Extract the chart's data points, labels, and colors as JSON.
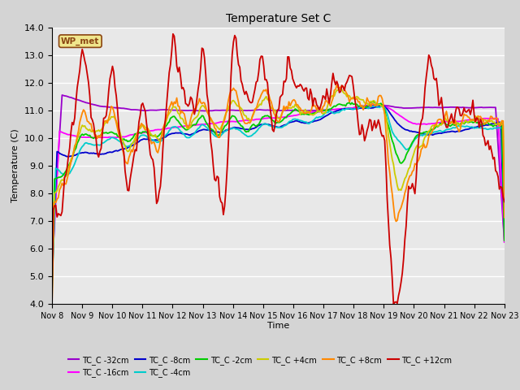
{
  "title": "Temperature Set C",
  "xlabel": "Time",
  "ylabel": "Temperature (C)",
  "ylim": [
    4.0,
    14.0
  ],
  "yticks": [
    4.0,
    5.0,
    6.0,
    7.0,
    8.0,
    9.0,
    10.0,
    11.0,
    12.0,
    13.0,
    14.0
  ],
  "xtick_labels": [
    "Nov 8",
    "Nov 9",
    "Nov 10",
    "Nov 11",
    "Nov 12",
    "Nov 13",
    "Nov 14",
    "Nov 15",
    "Nov 16",
    "Nov 17",
    "Nov 18",
    "Nov 19",
    "Nov 20",
    "Nov 21",
    "Nov 22",
    "Nov 23"
  ],
  "wp_met_label": "WP_met",
  "wp_met_box_color": "#f0e68c",
  "wp_met_text_color": "#8b4513",
  "bg_color": "#e0e0e0",
  "plot_bg_color": "#e8e8e8",
  "series": [
    {
      "label": "TC_C -32cm",
      "color": "#9900cc",
      "lw": 1.3
    },
    {
      "label": "TC_C -16cm",
      "color": "#ff00ff",
      "lw": 1.3
    },
    {
      "label": "TC_C -8cm",
      "color": "#0000cc",
      "lw": 1.3
    },
    {
      "label": "TC_C -4cm",
      "color": "#00cccc",
      "lw": 1.3
    },
    {
      "label": "TC_C -2cm",
      "color": "#00cc00",
      "lw": 1.3
    },
    {
      "label": "TC_C +4cm",
      "color": "#cccc00",
      "lw": 1.3
    },
    {
      "label": "TC_C +8cm",
      "color": "#ff8800",
      "lw": 1.3
    },
    {
      "label": "TC_C +12cm",
      "color": "#cc0000",
      "lw": 1.3
    }
  ],
  "figsize": [
    6.4,
    4.8
  ],
  "dpi": 100
}
